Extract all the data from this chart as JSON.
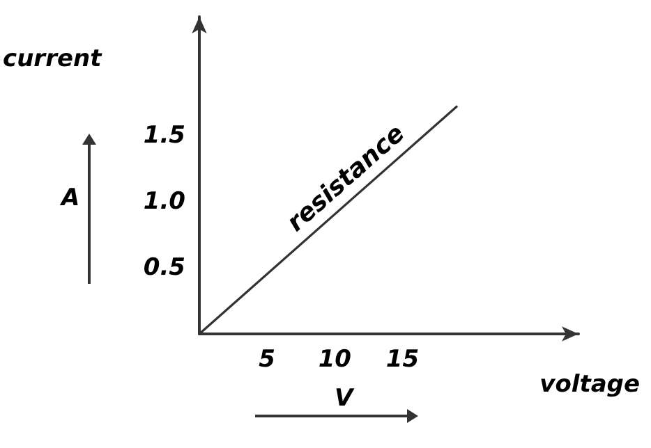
{
  "chart_data": {
    "type": "line",
    "xlabel": "voltage",
    "ylabel": "current",
    "x": [
      0,
      19
    ],
    "series": [
      {
        "name": "resistance",
        "color": "#333333",
        "values": [
          0,
          1.72
        ]
      }
    ],
    "xlim": [
      0,
      28
    ],
    "xticks": [
      5,
      10,
      15
    ],
    "ylim": [
      0,
      2.4
    ],
    "yticks": [
      0.5,
      {
        "value": 1,
        "label": "1.0"
      },
      1.5
    ],
    "annotations": [
      "A",
      "V"
    ],
    "grid": false,
    "marker": "none",
    "line_style": "solid"
  }
}
